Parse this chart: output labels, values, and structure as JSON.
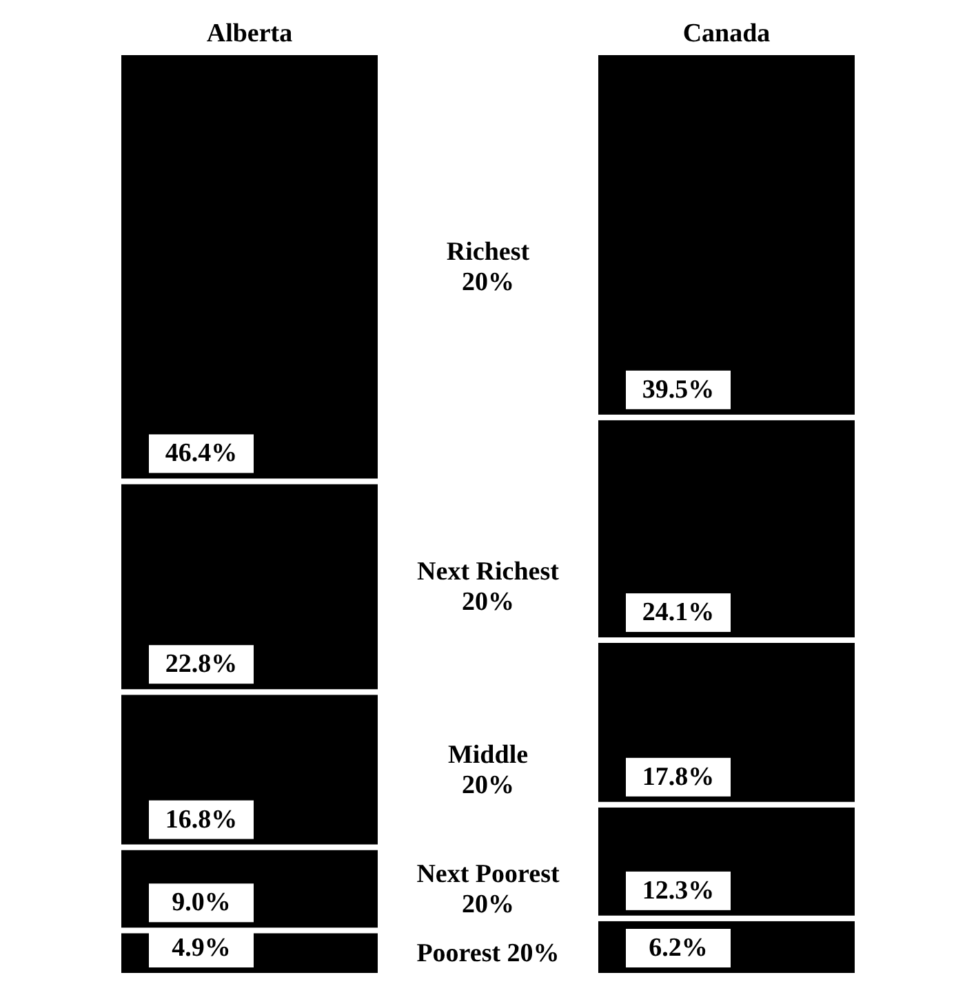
{
  "chart_data": {
    "type": "bar",
    "stacked": true,
    "categories": [
      "Alberta",
      "Canada"
    ],
    "series": [
      {
        "name": "Poorest 20%",
        "color": "#000000",
        "values": [
          4.9,
          6.2
        ],
        "value_labels": [
          "4.9%",
          "6.2%"
        ]
      },
      {
        "name": "Next Poorest\n20%",
        "color": "#000000",
        "values": [
          9.0,
          12.3
        ],
        "value_labels": [
          "9.0%",
          "12.3%"
        ]
      },
      {
        "name": "Middle\n20%",
        "color": "#000000",
        "values": [
          16.8,
          17.8
        ],
        "value_labels": [
          "16.8%",
          "17.8%"
        ]
      },
      {
        "name": "Next Richest\n20%",
        "color": "#000000",
        "values": [
          22.8,
          24.1
        ],
        "value_labels": [
          "22.8%",
          "24.1%"
        ]
      },
      {
        "name": "Richest\n20%",
        "color": "#000000",
        "values": [
          46.4,
          39.5
        ],
        "value_labels": [
          "46.4%",
          "39.5%"
        ]
      }
    ]
  }
}
